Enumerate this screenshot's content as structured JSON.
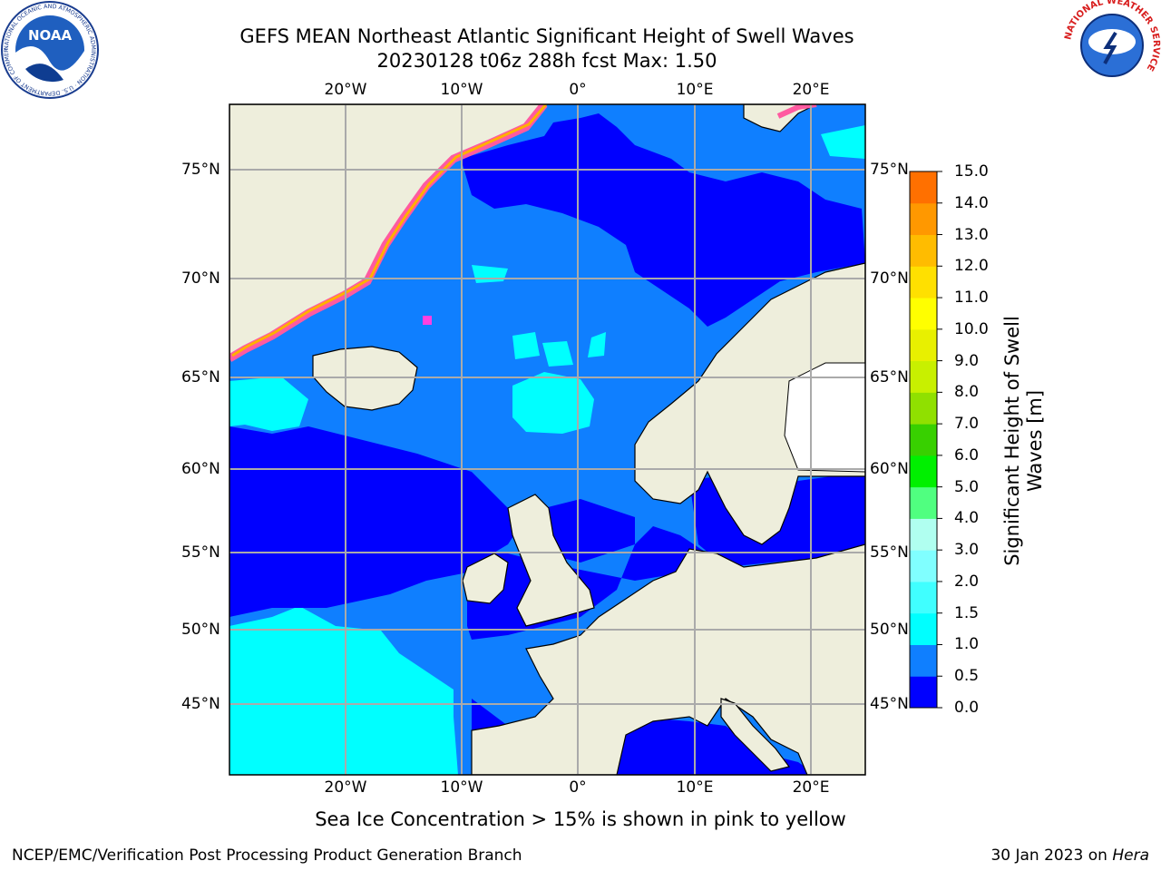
{
  "title": {
    "line1": "GEFS MEAN Northeast Atlantic Significant Height of Swell Waves",
    "line2": "20230128 t06z 288h fcst   Max: 1.50"
  },
  "axes": {
    "lon_labels": [
      "20°W",
      "10°W",
      "0°",
      "10°E",
      "20°E"
    ],
    "lat_labels": [
      "75°N",
      "70°N",
      "65°N",
      "60°N",
      "55°N",
      "50°N",
      "45°N"
    ]
  },
  "colorbar": {
    "label_line1": "Significant Height of Swell",
    "label_line2": "Waves [m]",
    "ticks": [
      "15.0",
      "14.0",
      "13.0",
      "12.0",
      "11.0",
      "10.0",
      "9.0",
      "8.0",
      "7.0",
      "6.0",
      "5.0",
      "4.0",
      "3.0",
      "2.0",
      "1.5",
      "1.0",
      "0.5",
      "0.0"
    ],
    "colors": [
      "#0000ff",
      "#0f7fff",
      "#00ffff",
      "#40ffff",
      "#80ffff",
      "#b0fff0",
      "#50ff80",
      "#00f000",
      "#38d000",
      "#90e000",
      "#c8f000",
      "#e8f000",
      "#ffff00",
      "#ffe000",
      "#ffbc00",
      "#ff9800",
      "#ff7000",
      "#ff3a00",
      "#ff0000"
    ]
  },
  "note": "Sea Ice Concentration > 15% is shown in pink to yellow",
  "footer": {
    "left": "NCEP/EMC/Verification Post Processing Product Generation Branch",
    "right_date": "30 Jan 2023 on ",
    "right_host": "Hera"
  },
  "logos": {
    "noaa_text": "NOAA",
    "noaa_ring": "NATIONAL OCEANIC AND ATMOSPHERIC ADMINISTRATION · U.S. DEPARTMENT OF COMMERCE",
    "nws_ring": "NATIONAL WEATHER SERVICE"
  }
}
